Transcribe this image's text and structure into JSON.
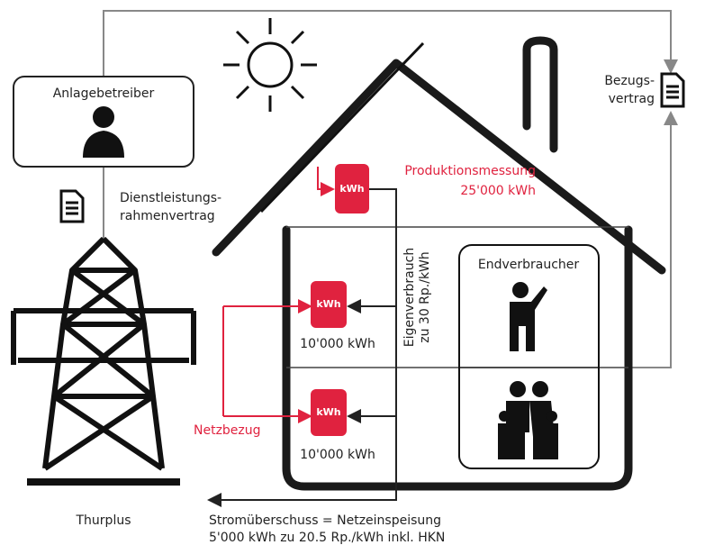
{
  "nodes": {
    "operator": {
      "label": "Anlagebetreiber"
    },
    "service_contract": {
      "lines": [
        "Dienstleistungs-",
        "rahmenvertrag"
      ]
    },
    "grid_operator": {
      "label": "Thurplus"
    },
    "supply_contract": {
      "lines": [
        "Bezugs-",
        "vertrag"
      ]
    },
    "production_meter": {
      "meter": "kWh",
      "lines": [
        "Produktionsmessung",
        "25'000 kWh"
      ]
    },
    "meter_1": {
      "meter": "kWh",
      "label": "10'000 kWh"
    },
    "meter_2": {
      "meter": "kWh",
      "label": "10'000 kWh"
    },
    "self_consumption": {
      "lines": [
        "Eigenverbrauch",
        "zu 30 Rp./kWh"
      ]
    },
    "end_consumer": {
      "label": "Endverbraucher"
    },
    "grid_supply": {
      "label": "Netzbezug"
    },
    "surplus": {
      "lines": [
        "Stromüberschuss = Netzeinspeisung",
        "5'000 kWh zu 20.5 Rp./kWh inkl. HKN"
      ]
    }
  }
}
